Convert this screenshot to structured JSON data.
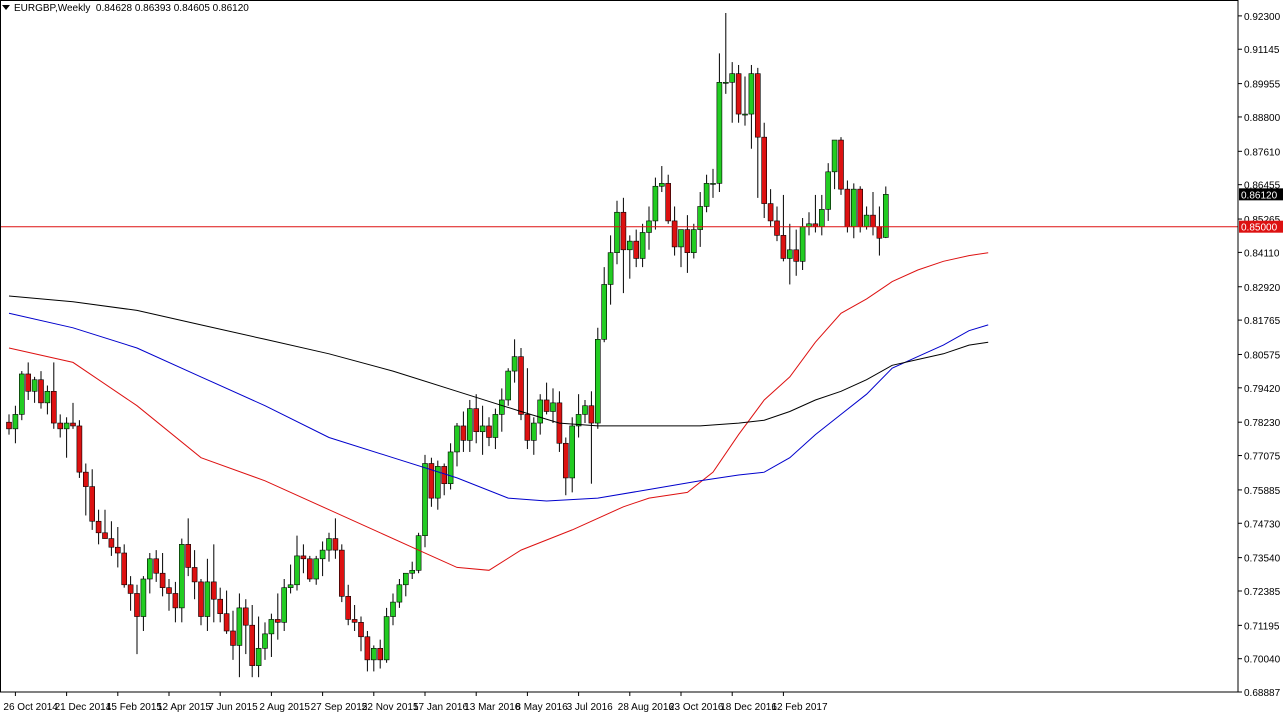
{
  "header": {
    "symbol": "EURGBP,Weekly",
    "ohlc": "0.84628 0.86393 0.84605 0.86120"
  },
  "colors": {
    "bull": "#22cc22",
    "bear": "#dd1111",
    "wick": "#000000",
    "ma_fast": "#dd1111",
    "ma_mid": "#0000cc",
    "ma_slow": "#000000",
    "hline": "#dd1111",
    "frame": "#000000"
  },
  "chart_data": {
    "type": "candlestick",
    "title": "",
    "ylim": [
      0.68887,
      0.9285
    ],
    "grid": false,
    "y_ticks": [
      "0.92300",
      "0.91145",
      "0.89955",
      "0.88800",
      "0.87610",
      "0.86455",
      "0.85265",
      "0.84110",
      "0.82920",
      "0.81765",
      "0.80575",
      "0.79420",
      "0.78230",
      "0.77075",
      "0.75885",
      "0.74730",
      "0.73540",
      "0.72385",
      "0.71195",
      "0.70040",
      "0.68887"
    ],
    "x_ticks": [
      "26 Oct 2014",
      "21 Dec 2014",
      "15 Feb 2015",
      "12 Apr 2015",
      "7 Jun 2015",
      "2 Aug 2015",
      "27 Sep 2015",
      "22 Nov 2015",
      "17 Jan 2016",
      "13 Mar 2016",
      "8 May 2016",
      "3 Jul 2016",
      "28 Aug 2016",
      "23 Oct 2016",
      "18 Dec 2016",
      "12 Feb 2017"
    ],
    "current_price": {
      "value": 0.8612,
      "label": "0.86120"
    },
    "horizontal_line": {
      "value": 0.85,
      "label": "0.85000"
    },
    "candles": [
      [
        0.7823,
        0.785,
        0.778,
        0.78
      ],
      [
        0.78,
        0.788,
        0.775,
        0.785
      ],
      [
        0.785,
        0.8,
        0.783,
        0.799
      ],
      [
        0.799,
        0.803,
        0.79,
        0.793
      ],
      [
        0.793,
        0.798,
        0.789,
        0.797
      ],
      [
        0.797,
        0.8,
        0.787,
        0.789
      ],
      [
        0.789,
        0.795,
        0.785,
        0.793
      ],
      [
        0.793,
        0.803,
        0.78,
        0.782
      ],
      [
        0.782,
        0.785,
        0.777,
        0.78
      ],
      [
        0.78,
        0.784,
        0.77,
        0.782
      ],
      [
        0.782,
        0.789,
        0.78,
        0.781
      ],
      [
        0.781,
        0.783,
        0.763,
        0.765
      ],
      [
        0.765,
        0.768,
        0.75,
        0.76
      ],
      [
        0.76,
        0.766,
        0.745,
        0.748
      ],
      [
        0.748,
        0.752,
        0.74,
        0.744
      ],
      [
        0.744,
        0.752,
        0.742,
        0.742
      ],
      [
        0.742,
        0.748,
        0.736,
        0.739
      ],
      [
        0.739,
        0.746,
        0.732,
        0.737
      ],
      [
        0.737,
        0.74,
        0.725,
        0.726
      ],
      [
        0.726,
        0.729,
        0.717,
        0.723
      ],
      [
        0.723,
        0.726,
        0.702,
        0.715
      ],
      [
        0.715,
        0.729,
        0.71,
        0.728
      ],
      [
        0.728,
        0.737,
        0.723,
        0.735
      ],
      [
        0.735,
        0.738,
        0.727,
        0.73
      ],
      [
        0.73,
        0.737,
        0.722,
        0.725
      ],
      [
        0.725,
        0.728,
        0.717,
        0.723
      ],
      [
        0.723,
        0.727,
        0.713,
        0.718
      ],
      [
        0.718,
        0.742,
        0.713,
        0.74
      ],
      [
        0.74,
        0.749,
        0.729,
        0.732
      ],
      [
        0.732,
        0.738,
        0.721,
        0.727
      ],
      [
        0.727,
        0.728,
        0.712,
        0.715
      ],
      [
        0.715,
        0.735,
        0.71,
        0.727
      ],
      [
        0.727,
        0.74,
        0.713,
        0.721
      ],
      [
        0.721,
        0.725,
        0.713,
        0.716
      ],
      [
        0.716,
        0.724,
        0.709,
        0.71
      ],
      [
        0.71,
        0.717,
        0.7,
        0.705
      ],
      [
        0.705,
        0.723,
        0.694,
        0.718
      ],
      [
        0.718,
        0.721,
        0.702,
        0.712
      ],
      [
        0.712,
        0.719,
        0.694,
        0.698
      ],
      [
        0.698,
        0.715,
        0.694,
        0.704
      ],
      [
        0.704,
        0.713,
        0.7,
        0.709
      ],
      [
        0.709,
        0.716,
        0.701,
        0.714
      ],
      [
        0.714,
        0.723,
        0.707,
        0.713
      ],
      [
        0.713,
        0.728,
        0.71,
        0.725
      ],
      [
        0.725,
        0.733,
        0.723,
        0.726
      ],
      [
        0.726,
        0.743,
        0.724,
        0.736
      ],
      [
        0.736,
        0.74,
        0.73,
        0.735
      ],
      [
        0.735,
        0.736,
        0.727,
        0.728
      ],
      [
        0.728,
        0.736,
        0.726,
        0.735
      ],
      [
        0.735,
        0.741,
        0.729,
        0.738
      ],
      [
        0.738,
        0.744,
        0.734,
        0.742
      ],
      [
        0.742,
        0.749,
        0.735,
        0.738
      ],
      [
        0.738,
        0.74,
        0.72,
        0.722
      ],
      [
        0.722,
        0.726,
        0.712,
        0.714
      ],
      [
        0.714,
        0.719,
        0.71,
        0.713
      ],
      [
        0.713,
        0.715,
        0.703,
        0.708
      ],
      [
        0.708,
        0.71,
        0.696,
        0.7
      ],
      [
        0.7,
        0.705,
        0.696,
        0.704
      ],
      [
        0.704,
        0.707,
        0.697,
        0.7
      ],
      [
        0.7,
        0.718,
        0.699,
        0.715
      ],
      [
        0.715,
        0.723,
        0.712,
        0.72
      ],
      [
        0.72,
        0.728,
        0.718,
        0.726
      ],
      [
        0.726,
        0.73,
        0.722,
        0.73
      ],
      [
        0.73,
        0.734,
        0.728,
        0.731
      ],
      [
        0.731,
        0.744,
        0.73,
        0.743
      ],
      [
        0.743,
        0.771,
        0.739,
        0.768
      ],
      [
        0.768,
        0.77,
        0.753,
        0.756
      ],
      [
        0.756,
        0.769,
        0.752,
        0.767
      ],
      [
        0.767,
        0.768,
        0.757,
        0.761
      ],
      [
        0.761,
        0.775,
        0.759,
        0.772
      ],
      [
        0.772,
        0.782,
        0.767,
        0.781
      ],
      [
        0.781,
        0.786,
        0.772,
        0.776
      ],
      [
        0.776,
        0.79,
        0.772,
        0.787
      ],
      [
        0.787,
        0.792,
        0.775,
        0.779
      ],
      [
        0.779,
        0.788,
        0.771,
        0.781
      ],
      [
        0.781,
        0.784,
        0.774,
        0.777
      ],
      [
        0.777,
        0.787,
        0.773,
        0.785
      ],
      [
        0.785,
        0.794,
        0.779,
        0.79
      ],
      [
        0.79,
        0.801,
        0.788,
        0.8
      ],
      [
        0.8,
        0.811,
        0.796,
        0.805
      ],
      [
        0.805,
        0.808,
        0.783,
        0.785
      ],
      [
        0.785,
        0.801,
        0.773,
        0.776
      ],
      [
        0.776,
        0.784,
        0.771,
        0.782
      ],
      [
        0.782,
        0.792,
        0.778,
        0.79
      ],
      [
        0.79,
        0.796,
        0.785,
        0.786
      ],
      [
        0.786,
        0.794,
        0.782,
        0.789
      ],
      [
        0.789,
        0.793,
        0.772,
        0.775
      ],
      [
        0.775,
        0.777,
        0.757,
        0.763
      ],
      [
        0.763,
        0.784,
        0.758,
        0.781
      ],
      [
        0.781,
        0.792,
        0.777,
        0.785
      ],
      [
        0.785,
        0.79,
        0.782,
        0.788
      ],
      [
        0.788,
        0.793,
        0.761,
        0.782
      ],
      [
        0.782,
        0.815,
        0.78,
        0.811
      ],
      [
        0.811,
        0.836,
        0.81,
        0.83
      ],
      [
        0.83,
        0.847,
        0.823,
        0.841
      ],
      [
        0.841,
        0.859,
        0.837,
        0.855
      ],
      [
        0.855,
        0.86,
        0.827,
        0.842
      ],
      [
        0.842,
        0.847,
        0.832,
        0.845
      ],
      [
        0.845,
        0.849,
        0.836,
        0.839
      ],
      [
        0.839,
        0.851,
        0.836,
        0.848
      ],
      [
        0.848,
        0.857,
        0.842,
        0.852
      ],
      [
        0.852,
        0.867,
        0.849,
        0.864
      ],
      [
        0.864,
        0.871,
        0.862,
        0.865
      ],
      [
        0.865,
        0.868,
        0.851,
        0.852
      ],
      [
        0.852,
        0.857,
        0.84,
        0.843
      ],
      [
        0.843,
        0.849,
        0.836,
        0.849
      ],
      [
        0.849,
        0.854,
        0.834,
        0.841
      ],
      [
        0.841,
        0.851,
        0.839,
        0.849
      ],
      [
        0.849,
        0.862,
        0.843,
        0.857
      ],
      [
        0.857,
        0.868,
        0.855,
        0.865
      ],
      [
        0.865,
        0.87,
        0.86,
        0.865
      ],
      [
        0.865,
        0.91,
        0.862,
        0.9
      ],
      [
        0.9,
        0.924,
        0.896,
        0.9
      ],
      [
        0.9,
        0.907,
        0.886,
        0.903
      ],
      [
        0.903,
        0.906,
        0.886,
        0.889
      ],
      [
        0.889,
        0.902,
        0.885,
        0.889
      ],
      [
        0.889,
        0.906,
        0.877,
        0.903
      ],
      [
        0.903,
        0.905,
        0.86,
        0.881
      ],
      [
        0.881,
        0.886,
        0.853,
        0.858
      ],
      [
        0.858,
        0.863,
        0.85,
        0.852
      ],
      [
        0.852,
        0.857,
        0.845,
        0.847
      ],
      [
        0.847,
        0.861,
        0.838,
        0.839
      ],
      [
        0.839,
        0.851,
        0.83,
        0.842
      ],
      [
        0.842,
        0.849,
        0.833,
        0.838
      ],
      [
        0.838,
        0.853,
        0.835,
        0.85
      ],
      [
        0.85,
        0.855,
        0.847,
        0.851
      ],
      [
        0.851,
        0.861,
        0.848,
        0.85
      ],
      [
        0.85,
        0.861,
        0.847,
        0.856
      ],
      [
        0.856,
        0.872,
        0.852,
        0.869
      ],
      [
        0.869,
        0.879,
        0.863,
        0.88
      ],
      [
        0.88,
        0.881,
        0.861,
        0.863
      ],
      [
        0.863,
        0.866,
        0.848,
        0.85
      ],
      [
        0.85,
        0.865,
        0.846,
        0.863
      ],
      [
        0.863,
        0.864,
        0.848,
        0.85
      ],
      [
        0.85,
        0.857,
        0.849,
        0.854
      ],
      [
        0.854,
        0.862,
        0.847,
        0.85
      ],
      [
        0.85,
        0.857,
        0.84,
        0.846
      ],
      [
        0.84628,
        0.86393,
        0.84605,
        0.8612
      ]
    ],
    "moving_averages": [
      {
        "color": "ma_fast",
        "period_label": "",
        "points": [
          [
            0,
            0.808
          ],
          [
            10,
            0.803
          ],
          [
            20,
            0.788
          ],
          [
            30,
            0.77
          ],
          [
            40,
            0.762
          ],
          [
            50,
            0.752
          ],
          [
            58,
            0.744
          ],
          [
            66,
            0.736
          ],
          [
            70,
            0.732
          ],
          [
            75,
            0.731
          ],
          [
            80,
            0.738
          ],
          [
            88,
            0.745
          ],
          [
            96,
            0.753
          ],
          [
            100,
            0.756
          ],
          [
            106,
            0.758
          ],
          [
            110,
            0.765
          ],
          [
            114,
            0.778
          ],
          [
            118,
            0.79
          ],
          [
            122,
            0.798
          ],
          [
            126,
            0.81
          ],
          [
            130,
            0.82
          ],
          [
            134,
            0.825
          ],
          [
            138,
            0.831
          ],
          [
            142,
            0.835
          ],
          [
            146,
            0.838
          ],
          [
            150,
            0.84
          ],
          [
            153,
            0.841
          ]
        ]
      },
      {
        "color": "ma_mid",
        "period_label": "",
        "points": [
          [
            0,
            0.82
          ],
          [
            10,
            0.815
          ],
          [
            20,
            0.808
          ],
          [
            30,
            0.798
          ],
          [
            40,
            0.788
          ],
          [
            50,
            0.777
          ],
          [
            60,
            0.77
          ],
          [
            70,
            0.763
          ],
          [
            78,
            0.756
          ],
          [
            84,
            0.755
          ],
          [
            92,
            0.756
          ],
          [
            100,
            0.759
          ],
          [
            108,
            0.762
          ],
          [
            114,
            0.764
          ],
          [
            118,
            0.765
          ],
          [
            122,
            0.77
          ],
          [
            126,
            0.778
          ],
          [
            130,
            0.785
          ],
          [
            134,
            0.792
          ],
          [
            138,
            0.801
          ],
          [
            142,
            0.805
          ],
          [
            146,
            0.809
          ],
          [
            150,
            0.814
          ],
          [
            153,
            0.816
          ]
        ]
      },
      {
        "color": "ma_slow",
        "period_label": "",
        "points": [
          [
            0,
            0.826
          ],
          [
            10,
            0.824
          ],
          [
            20,
            0.821
          ],
          [
            30,
            0.816
          ],
          [
            40,
            0.811
          ],
          [
            50,
            0.806
          ],
          [
            60,
            0.8
          ],
          [
            70,
            0.793
          ],
          [
            80,
            0.786
          ],
          [
            86,
            0.782
          ],
          [
            92,
            0.781
          ],
          [
            100,
            0.781
          ],
          [
            108,
            0.781
          ],
          [
            114,
            0.782
          ],
          [
            118,
            0.783
          ],
          [
            122,
            0.786
          ],
          [
            126,
            0.79
          ],
          [
            130,
            0.793
          ],
          [
            134,
            0.797
          ],
          [
            138,
            0.802
          ],
          [
            142,
            0.804
          ],
          [
            146,
            0.806
          ],
          [
            150,
            0.809
          ],
          [
            153,
            0.81
          ]
        ]
      }
    ]
  }
}
